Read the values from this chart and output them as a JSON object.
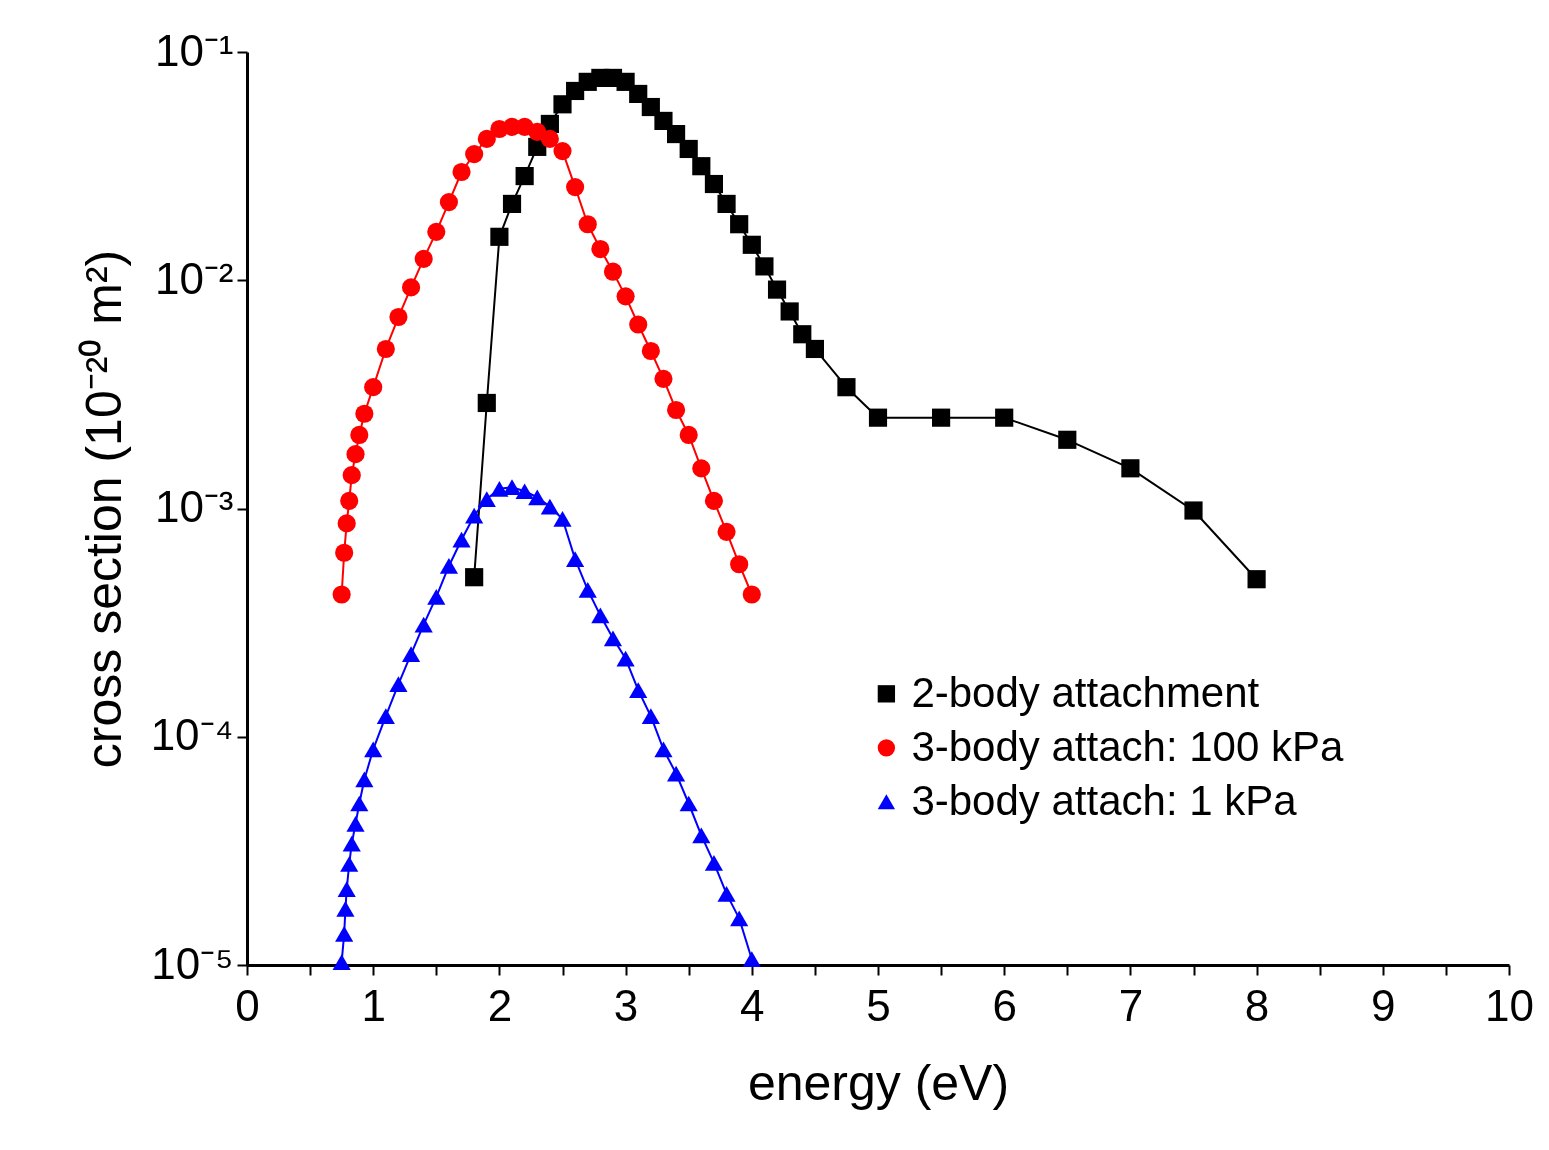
{
  "chart_data": {
    "type": "line",
    "xlabel": "energy (eV)",
    "ylabel": "cross section (10⁻²⁰ m²)",
    "xlim": [
      0,
      10
    ],
    "xticks": [
      0,
      {
        "value": 0.5,
        "label": null
      },
      1,
      {
        "value": 1.5,
        "label": null
      },
      2,
      {
        "value": 2.5,
        "label": null
      },
      3,
      {
        "value": 3.5,
        "label": null
      },
      4,
      {
        "value": 4.5,
        "label": null
      },
      5,
      {
        "value": 5.5,
        "label": null
      },
      6,
      {
        "value": 6.5,
        "label": null
      },
      7,
      {
        "value": 7.5,
        "label": null
      },
      8,
      {
        "value": 8.5,
        "label": null
      },
      9,
      {
        "value": 9.5,
        "label": null
      },
      10
    ],
    "ylim": [
      1e-05,
      0.1
    ],
    "yticks": [
      {
        "value": 1e-05,
        "label": "10⁻⁵"
      },
      {
        "value": 0.0001,
        "label": "10⁻⁴"
      },
      {
        "value": 0.001,
        "label": "10⁻³"
      },
      {
        "value": 0.01,
        "label": "10⁻²"
      },
      {
        "value": 0.1,
        "label": "10⁻¹"
      }
    ],
    "log": "y",
    "grid": false,
    "legend": "right",
    "series": [
      {
        "name": "2-body attachment",
        "color": "#000000",
        "marker": "square",
        "x": [
          1.8,
          1.9,
          2.0,
          2.1,
          2.2,
          2.3,
          2.4,
          2.5,
          2.6,
          2.7,
          2.8,
          2.9,
          3.0,
          3.1,
          3.2,
          3.3,
          3.4,
          3.5,
          3.6,
          3.7,
          3.8,
          3.9,
          4.0,
          4.1,
          4.2,
          4.3,
          4.4,
          4.5,
          4.75,
          5,
          5.5,
          6,
          6.5,
          7,
          7.5,
          8
        ],
        "values": [
          0.0005,
          0.0029,
          0.0155,
          0.0216,
          0.0286,
          0.0384,
          0.0484,
          0.059,
          0.0675,
          0.074,
          0.077,
          0.077,
          0.074,
          0.0655,
          0.0574,
          0.0499,
          0.0437,
          0.0376,
          0.0316,
          0.0264,
          0.0216,
          0.0176,
          0.0143,
          0.0115,
          0.0091,
          0.0073,
          0.0058,
          0.005,
          0.0034,
          0.0025,
          0.0025,
          0.0025,
          0.002,
          0.0015,
          0.00098,
          0.00049
        ]
      },
      {
        "name": "3-body attach: 100 kPa",
        "color": "#ff0000",
        "marker": "circle",
        "x": [
          0.75,
          0.77,
          0.79,
          0.81,
          0.83,
          0.86,
          0.89,
          0.93,
          1.0,
          1.1,
          1.2,
          1.3,
          1.4,
          1.5,
          1.6,
          1.7,
          1.8,
          1.9,
          2.0,
          2.1,
          2.2,
          2.3,
          2.4,
          2.5,
          2.6,
          2.7,
          2.8,
          2.9,
          3.0,
          3.1,
          3.2,
          3.3,
          3.4,
          3.5,
          3.6,
          3.7,
          3.8,
          3.9,
          4.0
        ],
        "values": [
          0.00042,
          0.00064,
          0.00086,
          0.00108,
          0.0014,
          0.00173,
          0.0021,
          0.0026,
          0.0034,
          0.005,
          0.0069,
          0.0093,
          0.0124,
          0.0163,
          0.022,
          0.0298,
          0.0357,
          0.0416,
          0.046,
          0.047,
          0.047,
          0.0447,
          0.0416,
          0.0368,
          0.0256,
          0.0176,
          0.0137,
          0.0109,
          0.0085,
          0.0064,
          0.0049,
          0.0037,
          0.0027,
          0.0021,
          0.0015,
          0.00108,
          0.00079,
          0.00057,
          0.00042
        ]
      },
      {
        "name": "3-body attach: 1 kPa",
        "color": "#0000ff",
        "marker": "triangle",
        "x": [
          0.75,
          0.77,
          0.78,
          0.79,
          0.81,
          0.83,
          0.86,
          0.89,
          0.93,
          1.0,
          1.1,
          1.2,
          1.3,
          1.4,
          1.5,
          1.6,
          1.7,
          1.8,
          1.9,
          2.0,
          2.1,
          2.2,
          2.3,
          2.4,
          2.5,
          2.6,
          2.7,
          2.8,
          2.9,
          3.0,
          3.1,
          3.2,
          3.3,
          3.4,
          3.5,
          3.6,
          3.7,
          3.8,
          3.9,
          4.0
        ],
        "values": [
          1.03e-05,
          1.37e-05,
          1.76e-05,
          2.15e-05,
          2.77e-05,
          3.4e-05,
          4.15e-05,
          5.1e-05,
          6.5e-05,
          8.8e-05,
          0.000123,
          0.00017,
          0.00023,
          0.00031,
          0.00041,
          0.00056,
          0.00073,
          0.00093,
          0.0011,
          0.00122,
          0.00124,
          0.00119,
          0.00112,
          0.00102,
          0.0009,
          0.0006,
          0.00044,
          0.00034,
          0.00027,
          0.00022,
          0.00016,
          0.000123,
          8.8e-05,
          6.9e-05,
          5.1e-05,
          3.7e-05,
          2.8e-05,
          2.05e-05,
          1.6e-05,
          1.06e-05
        ]
      }
    ]
  }
}
